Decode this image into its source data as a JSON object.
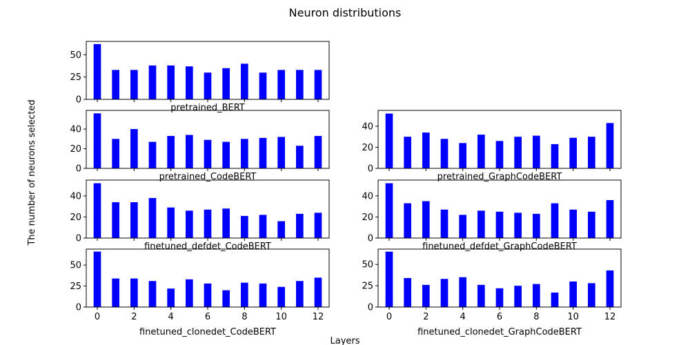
{
  "figure": {
    "title": "Neuron distributions",
    "xlabel": "Layers",
    "ylabel": "The number of neurons selected"
  },
  "chart_data": [
    {
      "type": "bar",
      "title": "pretrained_BERT",
      "x": [
        0,
        1,
        2,
        3,
        4,
        5,
        6,
        7,
        8,
        9,
        10,
        11,
        12
      ],
      "values": [
        62,
        33,
        33,
        38,
        38,
        37,
        30,
        35,
        40,
        30,
        33,
        33,
        33
      ],
      "ylim": [
        0,
        65
      ],
      "yticks": [
        0,
        25,
        50
      ],
      "show_x_tick_labels": false,
      "color": "#0000ff"
    },
    {
      "type": "bar",
      "title": "pretrained_CodeBERT",
      "x": [
        0,
        1,
        2,
        3,
        4,
        5,
        6,
        7,
        8,
        9,
        10,
        11,
        12
      ],
      "values": [
        56,
        30,
        40,
        27,
        33,
        34,
        29,
        27,
        30,
        31,
        32,
        23,
        33
      ],
      "ylim": [
        0,
        59
      ],
      "yticks": [
        0,
        20,
        40
      ],
      "show_x_tick_labels": false,
      "color": "#0000ff"
    },
    {
      "type": "bar",
      "title": "pretrained_GraphCodeBERT",
      "x": [
        0,
        1,
        2,
        3,
        4,
        5,
        6,
        7,
        8,
        9,
        10,
        11,
        12
      ],
      "values": [
        52,
        30,
        34,
        28,
        24,
        32,
        26,
        30,
        31,
        23,
        29,
        30,
        43
      ],
      "ylim": [
        0,
        55
      ],
      "yticks": [
        0,
        20,
        40
      ],
      "show_x_tick_labels": false,
      "color": "#0000ff"
    },
    {
      "type": "bar",
      "title": "finetuned_defdet_CodeBERT",
      "x": [
        0,
        1,
        2,
        3,
        4,
        5,
        6,
        7,
        8,
        9,
        10,
        11,
        12
      ],
      "values": [
        52,
        34,
        34,
        38,
        29,
        26,
        27,
        28,
        21,
        22,
        16,
        23,
        24
      ],
      "ylim": [
        0,
        55
      ],
      "yticks": [
        0,
        20,
        40
      ],
      "show_x_tick_labels": false,
      "color": "#0000ff"
    },
    {
      "type": "bar",
      "title": "finetuned_defdet_GraphCodeBERT",
      "x": [
        0,
        1,
        2,
        3,
        4,
        5,
        6,
        7,
        8,
        9,
        10,
        11,
        12
      ],
      "values": [
        52,
        33,
        35,
        27,
        22,
        26,
        25,
        24,
        23,
        33,
        27,
        25,
        36
      ],
      "ylim": [
        0,
        55
      ],
      "yticks": [
        0,
        20,
        40
      ],
      "show_x_tick_labels": false,
      "color": "#0000ff"
    },
    {
      "type": "bar",
      "title": "finetuned_clonedet_CodeBERT",
      "x": [
        0,
        1,
        2,
        3,
        4,
        5,
        6,
        7,
        8,
        9,
        10,
        11,
        12
      ],
      "values": [
        66,
        34,
        34,
        31,
        22,
        33,
        28,
        20,
        29,
        28,
        24,
        31,
        35
      ],
      "ylim": [
        0,
        69
      ],
      "yticks": [
        0,
        25,
        50
      ],
      "xticks": [
        0,
        2,
        4,
        6,
        8,
        10,
        12
      ],
      "show_x_tick_labels": true,
      "color": "#0000ff"
    },
    {
      "type": "bar",
      "title": "finetuned_clonedet_GraphCodeBERT",
      "x": [
        0,
        1,
        2,
        3,
        4,
        5,
        6,
        7,
        8,
        9,
        10,
        11,
        12
      ],
      "values": [
        65,
        34,
        26,
        33,
        35,
        26,
        22,
        25,
        27,
        17,
        30,
        28,
        43
      ],
      "ylim": [
        0,
        68
      ],
      "yticks": [
        0,
        25,
        50
      ],
      "xticks": [
        0,
        2,
        4,
        6,
        8,
        10,
        12
      ],
      "show_x_tick_labels": true,
      "color": "#0000ff"
    }
  ]
}
